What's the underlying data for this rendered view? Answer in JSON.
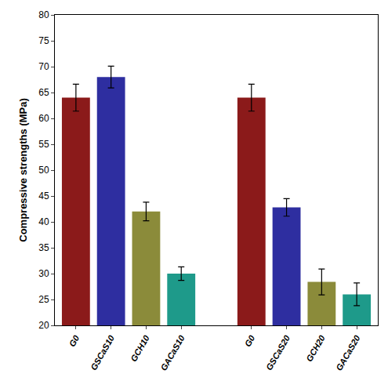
{
  "chart_data": {
    "type": "bar",
    "y_label": "Compressive strengths (MPa)",
    "categories": [
      "G0",
      "GSCaS10",
      "GCH10",
      "GACaS10",
      null,
      "G0",
      "GSCaS20",
      "GCH20",
      "GACaS20"
    ],
    "values": [
      64,
      68,
      42,
      30,
      null,
      64,
      42.8,
      28.4,
      26
    ],
    "errors": [
      2.6,
      2.1,
      1.8,
      1.3,
      null,
      2.6,
      1.7,
      2.5,
      2.2
    ],
    "colors": [
      "#8b1a1a",
      "#2e2ea0",
      "#8b8b3a",
      "#1e9a8a",
      null,
      "#8b1a1a",
      "#2e2ea0",
      "#8b8b3a",
      "#1e9a8a"
    ],
    "ylim": [
      20,
      80
    ],
    "yticks": [
      20,
      25,
      30,
      35,
      40,
      45,
      50,
      55,
      60,
      65,
      70,
      75,
      80
    ],
    "grid": false
  }
}
